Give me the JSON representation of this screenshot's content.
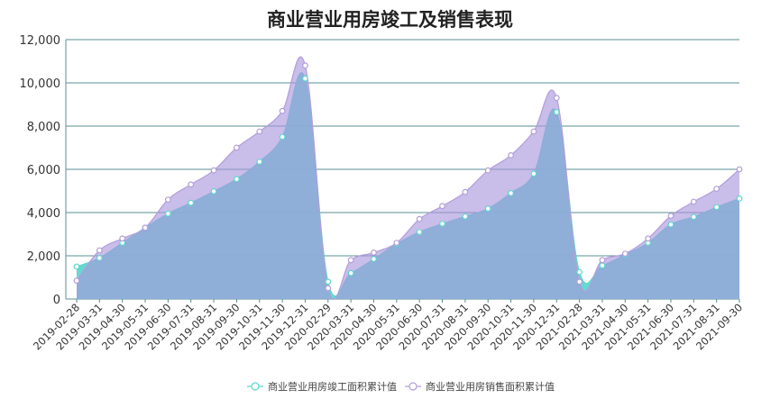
{
  "chart_data": {
    "type": "area",
    "title": "商业营业用房竣工及销售表现",
    "xlabel": "",
    "ylabel": "",
    "ylim": [
      0,
      12000
    ],
    "yticks": [
      "0",
      "2,000",
      "4,000",
      "6,000",
      "8,000",
      "10,000",
      "12,000"
    ],
    "ytick_values": [
      0,
      2000,
      4000,
      6000,
      8000,
      10000,
      12000
    ],
    "grid": true,
    "legend_position": "bottom",
    "categories": [
      "2019-02-28",
      "2019-03-31",
      "2019-04-30",
      "2019-05-31",
      "2019-06-30",
      "2019-07-31",
      "2019-08-31",
      "2019-09-30",
      "2019-10-31",
      "2019-11-30",
      "2019-12-31",
      "2020-02-29",
      "2020-03-31",
      "2020-04-30",
      "2020-05-31",
      "2020-06-30",
      "2020-07-31",
      "2020-08-31",
      "2020-09-30",
      "2020-10-31",
      "2020-11-30",
      "2020-12-31",
      "2021-02-28",
      "2021-03-31",
      "2021-04-30",
      "2021-05-31",
      "2021-06-30",
      "2021-07-31",
      "2021-08-31",
      "2021-09-30"
    ],
    "series": [
      {
        "name": "商业营业用房竣工面积累计值",
        "color": "#5ed6cf",
        "values": [
          1500,
          1900,
          2600,
          3300,
          3950,
          4450,
          4980,
          5550,
          6350,
          7500,
          10200,
          800,
          1200,
          1850,
          2550,
          3100,
          3480,
          3820,
          4180,
          4900,
          5800,
          8650,
          1250,
          1550,
          2050,
          2600,
          3450,
          3800,
          4250,
          4650
        ]
      },
      {
        "name": "商业营业用房销售面积累计值",
        "color": "#b39ddb",
        "values": [
          850,
          2250,
          2800,
          3300,
          4600,
          5300,
          5950,
          7000,
          7750,
          8700,
          10800,
          500,
          1800,
          2150,
          2600,
          3700,
          4300,
          4950,
          5950,
          6650,
          7750,
          9300,
          800,
          1800,
          2100,
          2800,
          3850,
          4500,
          5100,
          6000
        ]
      }
    ]
  }
}
